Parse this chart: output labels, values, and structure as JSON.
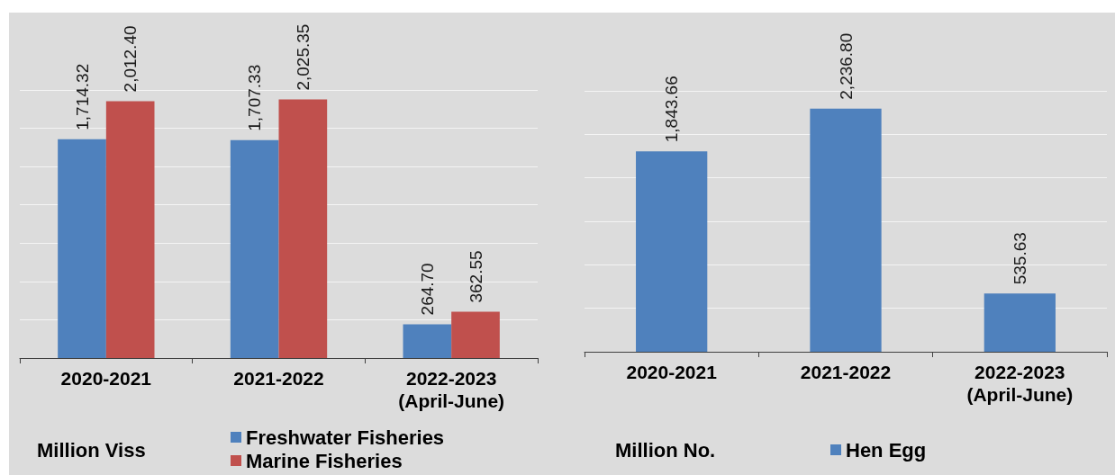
{
  "chart_data": [
    {
      "type": "bar",
      "annotations": [
        "Million Viss"
      ],
      "categories": [
        "2020-2021",
        "2021-2022",
        "2022-2023\n(April-June)"
      ],
      "series": [
        {
          "name": "Freshwater Fisheries",
          "color": "#4f81bd",
          "values": [
            1714.32,
            1707.33,
            264.7
          ],
          "value_labels": [
            "1,714.32",
            "1,707.33",
            "264.70"
          ]
        },
        {
          "name": "Marine Fisheries",
          "color": "#c0504d",
          "values": [
            2012.4,
            2025.35,
            362.55
          ],
          "value_labels": [
            "2,012.40",
            "2,025.35",
            "362.55"
          ]
        }
      ],
      "ylim": [
        0,
        2100
      ],
      "yticks": [
        {
          "value": 0,
          "label": null
        },
        {
          "value": 300,
          "label": null
        },
        {
          "value": 600,
          "label": null
        },
        {
          "value": 900,
          "label": null
        },
        {
          "value": 1200,
          "label": null
        },
        {
          "value": 1500,
          "label": null
        },
        {
          "value": 1800,
          "label": null
        },
        {
          "value": 2100,
          "label": null
        }
      ],
      "grid": "y",
      "legend": "bottom",
      "tick_labels": "x"
    },
    {
      "type": "bar",
      "annotations": [
        "Million No."
      ],
      "categories": [
        "2020-2021",
        "2021-2022",
        "2022-2023\n(April-June)"
      ],
      "series": [
        {
          "name": "Hen Egg",
          "color": "#4f81bd",
          "values": [
            1843.66,
            2236.8,
            535.63
          ],
          "value_labels": [
            "1,843.66",
            "2,236.80",
            "535.63"
          ]
        }
      ],
      "ylim": [
        0,
        2400
      ],
      "yticks": [
        {
          "value": 0,
          "label": null
        },
        {
          "value": 400,
          "label": null
        },
        {
          "value": 800,
          "label": null
        },
        {
          "value": 1200,
          "label": null
        },
        {
          "value": 1600,
          "label": null
        },
        {
          "value": 2000,
          "label": null
        },
        {
          "value": 2400,
          "label": null
        }
      ],
      "grid": "y",
      "legend": "bottom",
      "tick_labels": "x"
    }
  ]
}
